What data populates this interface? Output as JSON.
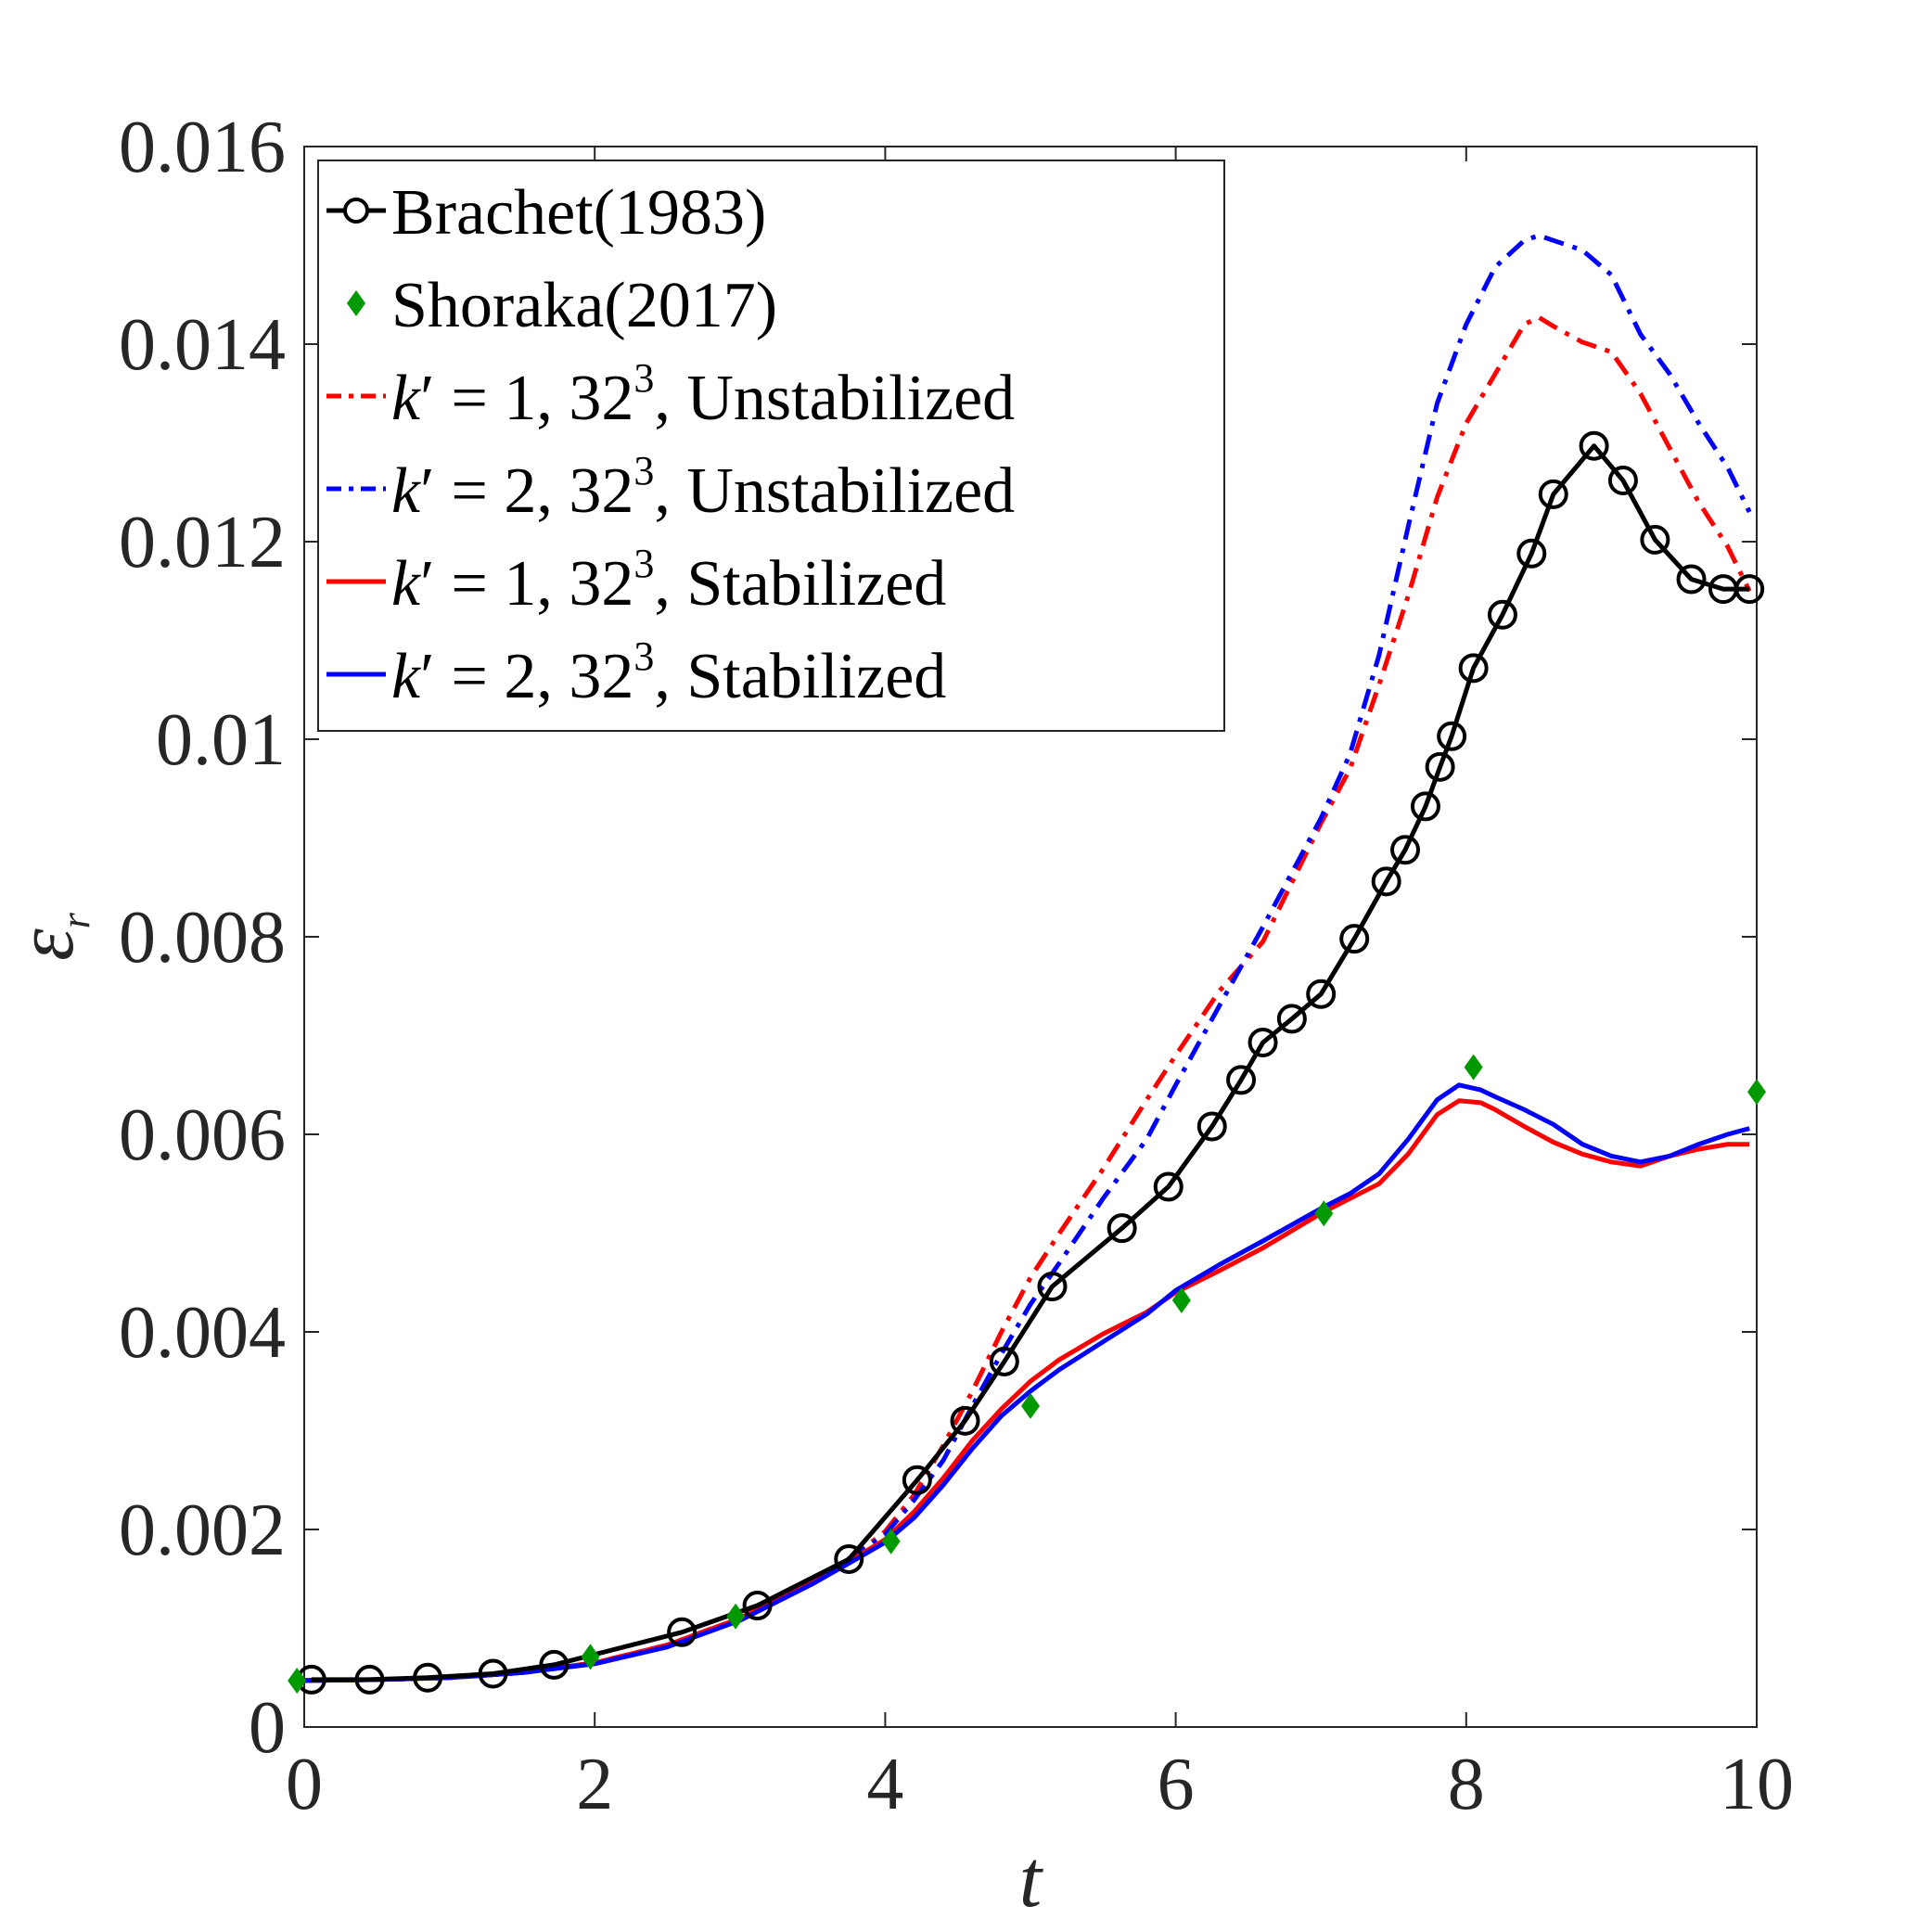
{
  "chart_data": {
    "type": "line",
    "title": "",
    "xlabel": "t",
    "ylabel": "ε_r",
    "ylabel_symbol": "ε",
    "ylabel_subscript": "r",
    "xlim": [
      0,
      10
    ],
    "ylim": [
      0,
      0.016
    ],
    "xticks": [
      "0",
      "2",
      "4",
      "6",
      "8",
      "10"
    ],
    "xtick_values": [
      0,
      2,
      4,
      6,
      8,
      10
    ],
    "yticks": [
      "0",
      "0.002",
      "0.004",
      "0.006",
      "0.008",
      "0.01",
      "0.012",
      "0.014",
      "0.016"
    ],
    "ytick_values": [
      0,
      0.002,
      0.004,
      0.006,
      0.008,
      0.01,
      0.012,
      0.014,
      0.016
    ],
    "grid": false,
    "legend_position": "top-left",
    "series": [
      {
        "name": "Brachet(1983)",
        "label_text": "Brachet(1983)",
        "style": "solid-circle-markers",
        "color": "#000000",
        "x": [
          0.05,
          0.45,
          0.85,
          1.3,
          1.72,
          2.6,
          3.12,
          3.75,
          4.22,
          4.55,
          4.82,
          5.15,
          5.63,
          5.95,
          6.25,
          6.45,
          6.6,
          6.8,
          7.0,
          7.23,
          7.45,
          7.58,
          7.72,
          7.82,
          7.9,
          8.05,
          8.25,
          8.45,
          8.6,
          8.88,
          9.08,
          9.3,
          9.55,
          9.77,
          9.95
        ],
        "y": [
          0.00048,
          0.00048,
          0.0005,
          0.00054,
          0.00063,
          0.00096,
          0.00123,
          0.0017,
          0.0025,
          0.0031,
          0.0037,
          0.00446,
          0.00505,
          0.00547,
          0.00608,
          0.00655,
          0.00693,
          0.00717,
          0.00742,
          0.00798,
          0.00856,
          0.00888,
          0.00932,
          0.00972,
          0.01003,
          0.01072,
          0.01126,
          0.01188,
          0.01248,
          0.01297,
          0.01262,
          0.01202,
          0.01162,
          0.01152,
          0.01152
        ]
      },
      {
        "name": "Shoraka(2017)",
        "label_text": "Shoraka(2017)",
        "style": "diamond-markers",
        "color": "#009900",
        "x": [
          -0.05,
          1.97,
          2.97,
          4.04,
          5.0,
          6.04,
          7.02,
          8.05,
          10.0
        ],
        "y": [
          0.00047,
          0.00071,
          0.00112,
          0.00188,
          0.00325,
          0.00432,
          0.0052,
          0.00668,
          0.00643
        ]
      },
      {
        "name": "k′ = 1, 32³, Unstabilized",
        "label_k": "k",
        "label_prime": "′",
        "label_value": "= 1, 32",
        "label_sup": "3",
        "label_suffix": ", Unstabilized",
        "style": "dash-dot",
        "color": "#ff0000",
        "x": [
          0,
          0.5,
          1.0,
          1.5,
          2.0,
          2.5,
          3.0,
          3.5,
          3.8,
          4.0,
          4.2,
          4.4,
          4.6,
          4.8,
          5.0,
          5.2,
          5.5,
          5.8,
          6.0,
          6.3,
          6.6,
          7.0,
          7.2,
          7.4,
          7.6,
          7.8,
          8.0,
          8.2,
          8.4,
          8.5,
          8.6,
          8.8,
          9.0,
          9.2,
          9.4,
          9.6,
          9.8,
          9.95
        ],
        "y": [
          0.00047,
          0.00048,
          0.0005,
          0.00055,
          0.00065,
          0.00083,
          0.0011,
          0.00148,
          0.00175,
          0.00198,
          0.00235,
          0.00285,
          0.0034,
          0.004,
          0.00455,
          0.005,
          0.00565,
          0.00635,
          0.0068,
          0.00745,
          0.00795,
          0.00915,
          0.0097,
          0.01055,
          0.01145,
          0.01245,
          0.0132,
          0.0137,
          0.0142,
          0.01427,
          0.01418,
          0.01402,
          0.01392,
          0.0135,
          0.01295,
          0.0124,
          0.01195,
          0.0115
        ]
      },
      {
        "name": "k′ = 2, 32³, Unstabilized",
        "label_k": "k",
        "label_prime": "′",
        "label_value": "= 2, 32",
        "label_sup": "3",
        "label_suffix": ", Unstabilized",
        "style": "dash-dot",
        "color": "#0000ff",
        "x": [
          0,
          0.5,
          1.0,
          1.5,
          2.0,
          2.5,
          3.0,
          3.5,
          3.8,
          4.0,
          4.2,
          4.4,
          4.6,
          4.8,
          5.0,
          5.2,
          5.5,
          5.8,
          6.0,
          6.3,
          6.6,
          7.0,
          7.2,
          7.4,
          7.6,
          7.8,
          8.0,
          8.2,
          8.4,
          8.5,
          8.6,
          8.8,
          9.0,
          9.2,
          9.4,
          9.6,
          9.8,
          9.95
        ],
        "y": [
          0.00047,
          0.00048,
          0.0005,
          0.00055,
          0.00065,
          0.00083,
          0.0011,
          0.00148,
          0.00175,
          0.00195,
          0.0023,
          0.0027,
          0.00325,
          0.00378,
          0.00428,
          0.0047,
          0.00535,
          0.00595,
          0.0065,
          0.0073,
          0.0081,
          0.0092,
          0.00985,
          0.01085,
          0.01215,
          0.0134,
          0.0142,
          0.01478,
          0.01505,
          0.0151,
          0.01505,
          0.01495,
          0.0147,
          0.0141,
          0.0137,
          0.0132,
          0.01275,
          0.0123
        ]
      },
      {
        "name": "k′ = 1, 32³, Stabilized",
        "label_k": "k",
        "label_prime": "′",
        "label_value": "= 1, 32",
        "label_sup": "3",
        "label_suffix": ", Stabilized",
        "style": "solid",
        "color": "#ff0000",
        "x": [
          0,
          0.5,
          1.0,
          1.5,
          2.0,
          2.5,
          3.0,
          3.5,
          3.8,
          4.0,
          4.2,
          4.4,
          4.6,
          4.8,
          5.0,
          5.2,
          5.5,
          5.8,
          6.0,
          6.3,
          6.6,
          7.0,
          7.2,
          7.4,
          7.6,
          7.8,
          7.95,
          8.1,
          8.2,
          8.4,
          8.6,
          8.8,
          9.0,
          9.2,
          9.4,
          9.6,
          9.8,
          9.95
        ],
        "y": [
          0.00047,
          0.00048,
          0.0005,
          0.00055,
          0.00065,
          0.00083,
          0.0011,
          0.00148,
          0.00172,
          0.0019,
          0.00218,
          0.00252,
          0.0029,
          0.00322,
          0.0035,
          0.00372,
          0.00398,
          0.0042,
          0.0044,
          0.00462,
          0.00485,
          0.0052,
          0.00535,
          0.0055,
          0.0058,
          0.0062,
          0.00634,
          0.00632,
          0.00625,
          0.00608,
          0.00592,
          0.0058,
          0.00572,
          0.00568,
          0.00578,
          0.00585,
          0.0059,
          0.0059
        ]
      },
      {
        "name": "k′ = 2, 32³, Stabilized",
        "label_k": "k",
        "label_prime": "′",
        "label_value": "= 2, 32",
        "label_sup": "3",
        "label_suffix": ", Stabilized",
        "style": "solid",
        "color": "#0000ff",
        "x": [
          0,
          0.5,
          1.0,
          1.5,
          2.0,
          2.5,
          3.0,
          3.5,
          3.8,
          4.0,
          4.2,
          4.4,
          4.6,
          4.8,
          5.0,
          5.2,
          5.5,
          5.8,
          6.0,
          6.3,
          6.6,
          7.0,
          7.2,
          7.4,
          7.6,
          7.8,
          7.95,
          8.1,
          8.2,
          8.4,
          8.6,
          8.8,
          9.0,
          9.2,
          9.4,
          9.6,
          9.8,
          9.95
        ],
        "y": [
          0.00047,
          0.00048,
          0.0005,
          0.00055,
          0.00064,
          0.00081,
          0.00108,
          0.00145,
          0.0017,
          0.00187,
          0.00212,
          0.00245,
          0.00282,
          0.00315,
          0.0034,
          0.00362,
          0.0039,
          0.00418,
          0.00442,
          0.00468,
          0.00492,
          0.00525,
          0.0054,
          0.0056,
          0.00595,
          0.00635,
          0.0065,
          0.00645,
          0.00638,
          0.00625,
          0.0061,
          0.0059,
          0.00578,
          0.00572,
          0.00578,
          0.0059,
          0.006,
          0.00606
        ]
      }
    ]
  }
}
